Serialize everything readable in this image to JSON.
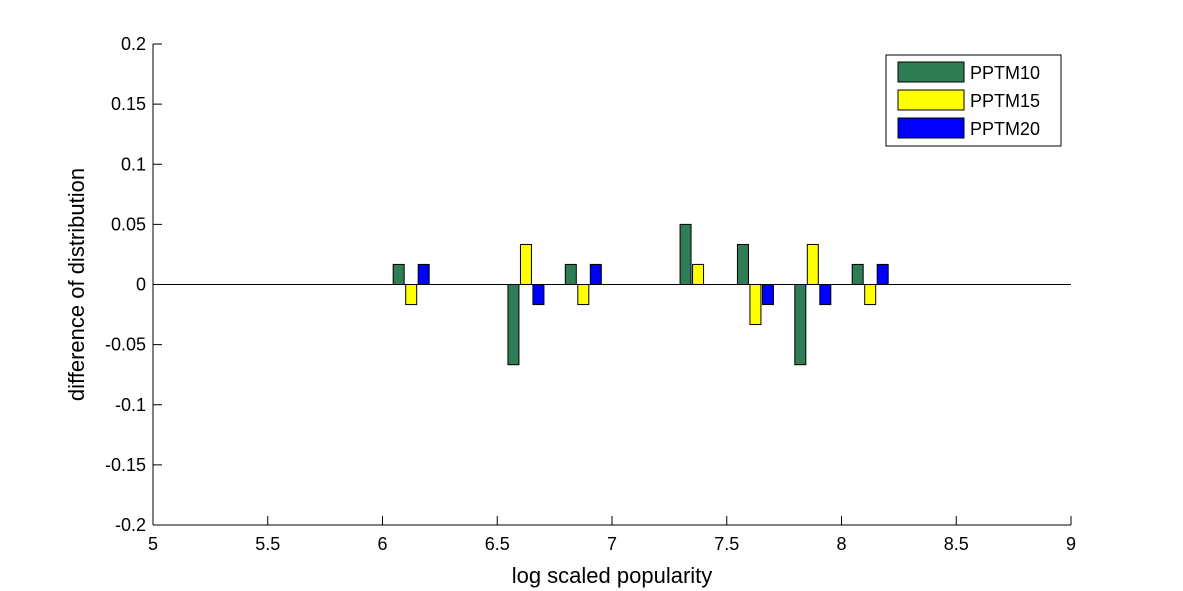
{
  "chart_data": {
    "type": "bar",
    "title": "",
    "xlabel": "log scaled popularity",
    "ylabel": "difference of distribution",
    "xlim": [
      5,
      9
    ],
    "ylim": [
      -0.2,
      0.2
    ],
    "x_ticks": [
      5,
      5.5,
      6,
      6.5,
      7,
      7.5,
      8,
      8.5,
      9
    ],
    "x_tick_labels": [
      "5",
      "5.5",
      "6",
      "6.5",
      "7",
      "7.5",
      "8",
      "8.5",
      "9"
    ],
    "y_ticks": [
      0.2,
      0.15,
      0.1,
      0.05,
      0,
      -0.05,
      -0.1,
      -0.15,
      -0.2
    ],
    "y_tick_labels": [
      "0.2",
      "0.15",
      "0.1",
      "0.05",
      "0",
      "-0.05",
      "-0.1",
      "-0.15",
      "-0.2"
    ],
    "grid": false,
    "legend_position": "top-right",
    "categories": [
      6.125,
      6.625,
      6.875,
      7.375,
      7.625,
      7.875,
      8.125
    ],
    "series": [
      {
        "name": "PPTM10",
        "color": "#2e7d55",
        "values": [
          0.0167,
          -0.0667,
          0.0167,
          0.05,
          0.0333,
          -0.0667,
          0.0167
        ]
      },
      {
        "name": "PPTM15",
        "color": "#ffff00",
        "values": [
          -0.0167,
          0.0333,
          -0.0167,
          0.0167,
          -0.0333,
          0.0333,
          -0.0167
        ]
      },
      {
        "name": "PPTM20",
        "color": "#0000ff",
        "values": [
          0.0167,
          -0.0167,
          0.0167,
          0,
          -0.0167,
          -0.0167,
          0.0167
        ]
      }
    ]
  }
}
